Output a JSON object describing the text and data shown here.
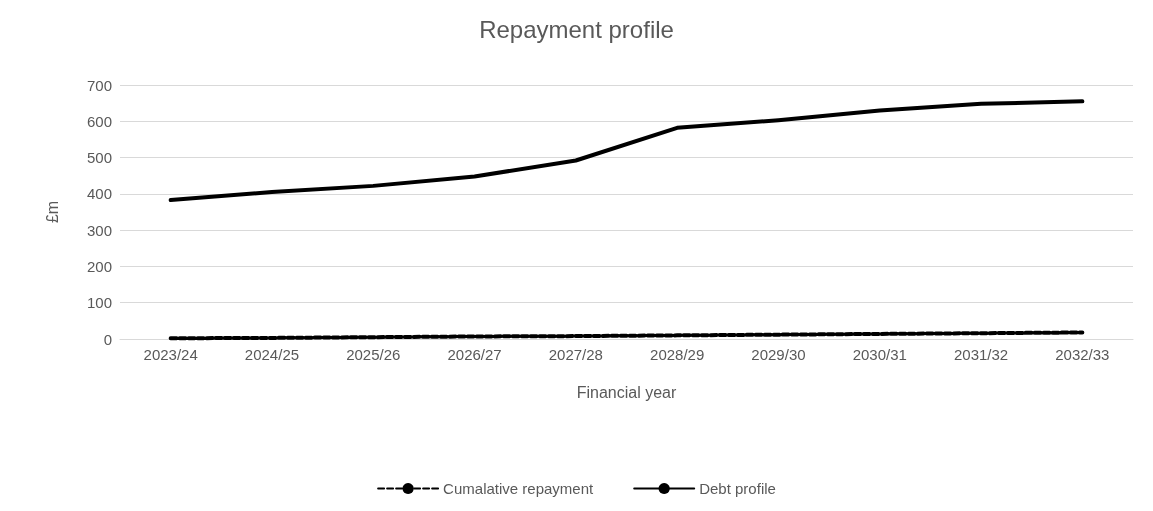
{
  "chart_data": {
    "type": "line",
    "title": "Repayment profile",
    "xlabel": "Financial year",
    "ylabel": "£m",
    "categories": [
      "2023/24",
      "2024/25",
      "2025/26",
      "2026/27",
      "2027/28",
      "2028/29",
      "2029/30",
      "2030/31",
      "2031/32",
      "2032/33"
    ],
    "series": [
      {
        "name": "Cumalative repayment",
        "color": "#000000",
        "line_style": "dashed",
        "values": [
          2,
          3,
          5,
          7,
          8,
          10,
          12,
          14,
          16,
          18
        ]
      },
      {
        "name": "Debt profile",
        "color": "#000000",
        "line_style": "solid",
        "values": [
          383,
          405,
          422,
          448,
          492,
          582,
          603,
          630,
          648,
          655
        ]
      }
    ],
    "ylim": [
      0,
      700
    ],
    "yticks": [
      0,
      100,
      200,
      300,
      400,
      500,
      600,
      700
    ],
    "grid": "y",
    "legend": "bottom",
    "marker": "none"
  }
}
